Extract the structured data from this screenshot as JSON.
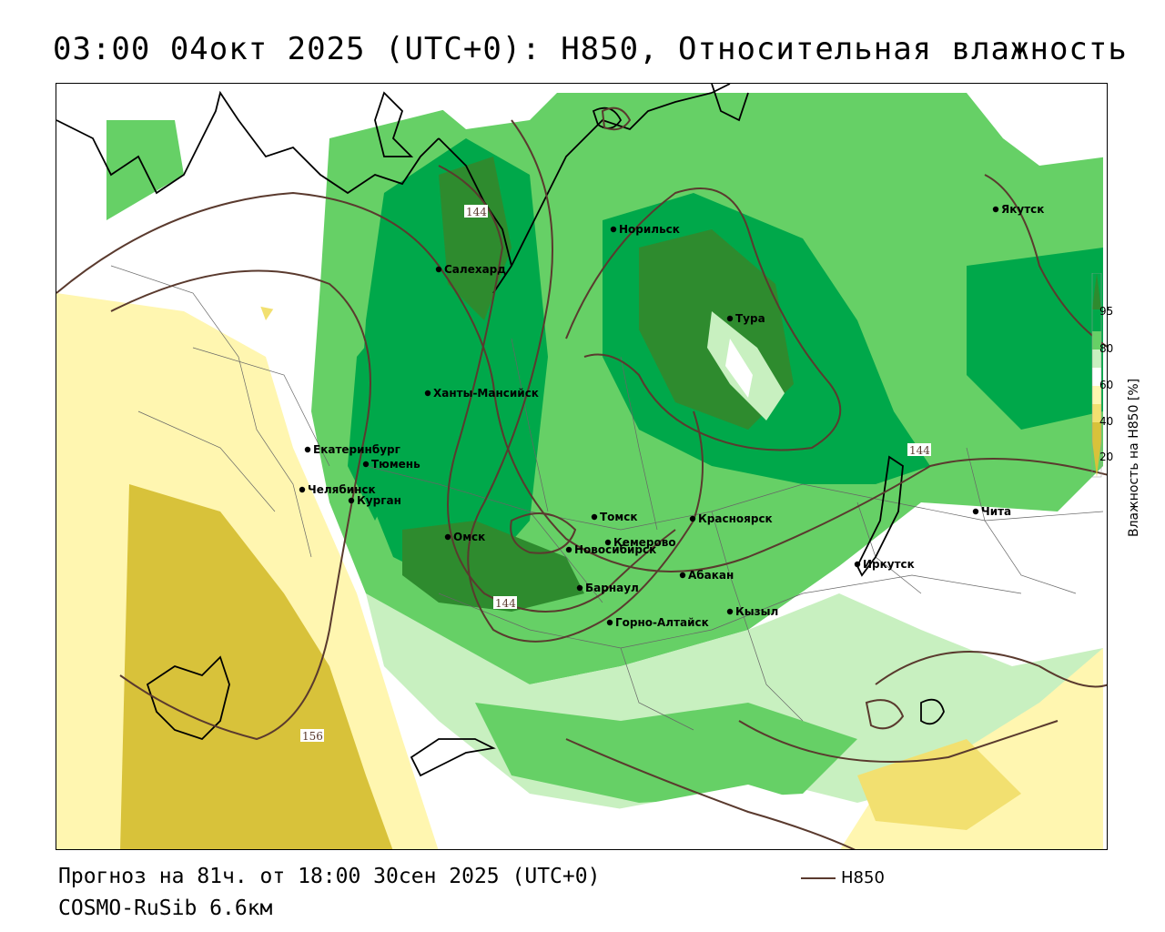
{
  "title": "03:00 04окт 2025 (UTC+0): H850, Относительная влажность",
  "footer": {
    "forecast": "Прогноз на 81ч. от 18:00 30сен 2025 (UTC+0)",
    "model": "COSMO-RuSib 6.6км",
    "contour_legend": "H850"
  },
  "colorbar": {
    "title": "Влажность на H850 [%]",
    "ticks": [
      "95",
      "80",
      "60",
      "40",
      "20"
    ],
    "colors": {
      "c95": "#2e8b2e",
      "c80": "#00a84a",
      "c60": "#66d066",
      "c50": "#c8f0c0",
      "c40": "#ffffff",
      "c30": "#fff6b0",
      "c20": "#f2e070",
      "c10": "#d8c23a"
    }
  },
  "contour_labels": [
    "144",
    "144",
    "144",
    "156"
  ],
  "cities": [
    {
      "name": "Якутск"
    },
    {
      "name": "Норильск"
    },
    {
      "name": "Салехард"
    },
    {
      "name": "Тура"
    },
    {
      "name": "Ханты-Мансийск"
    },
    {
      "name": "Екатеринбург"
    },
    {
      "name": "Тюмень"
    },
    {
      "name": "Челябинск"
    },
    {
      "name": "Курган"
    },
    {
      "name": "Омск"
    },
    {
      "name": "Новосибирск"
    },
    {
      "name": "Томск"
    },
    {
      "name": "Кемерово"
    },
    {
      "name": "Красноярск"
    },
    {
      "name": "Абакан"
    },
    {
      "name": "Барнаул"
    },
    {
      "name": "Горно-Алтайск"
    },
    {
      "name": "Кызыл"
    },
    {
      "name": "Иркутск"
    },
    {
      "name": "Чита"
    }
  ],
  "colors": {
    "contour": "#5a3a2e",
    "coast": "#000000",
    "border": "#666666"
  }
}
